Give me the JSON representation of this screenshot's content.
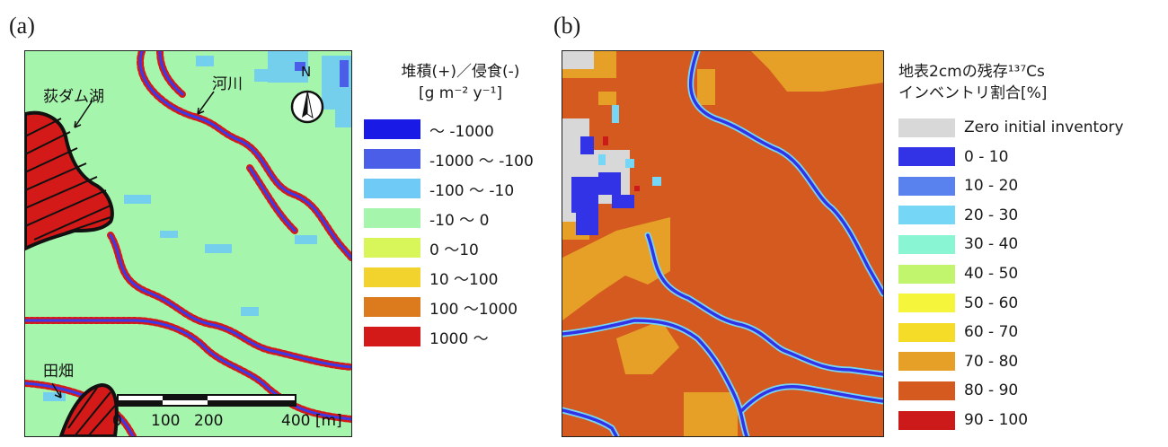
{
  "panel_a": {
    "panel_label": "(a)",
    "map_labels": {
      "lake": "荻ダム湖",
      "river": "河川",
      "field": "田畑",
      "north": "N"
    },
    "scale_bar": {
      "ticks": [
        "0",
        "100",
        "200",
        "400 [m]"
      ]
    },
    "legend": {
      "title_line1": "堆積(+)／侵食(-)",
      "title_line2": "[g m⁻² y⁻¹]",
      "items": [
        {
          "label": "〜 -1000",
          "color": "#1a1ae6"
        },
        {
          "label": "-1000 〜 -100",
          "color": "#4a5ee8"
        },
        {
          "label": "-100 〜 -10",
          "color": "#6fcbf5"
        },
        {
          "label": "-10 〜 0",
          "color": "#a6f5ad"
        },
        {
          "label": "0 〜10",
          "color": "#d8f55a"
        },
        {
          "label": "10 〜100",
          "color": "#f2d22c"
        },
        {
          "label": "100 〜1000",
          "color": "#dc7a1e"
        },
        {
          "label": "1000 〜",
          "color": "#d41919"
        }
      ]
    }
  },
  "panel_b": {
    "panel_label": "(b)",
    "legend": {
      "title_line1": "地表2cmの残存¹³⁷Cs",
      "title_line2": "インベントリ割合[%]",
      "items": [
        {
          "label": "Zero initial inventory",
          "color": "#d8d8d8"
        },
        {
          "label": "0 - 10",
          "color": "#3232e6"
        },
        {
          "label": "10 - 20",
          "color": "#5a82ee"
        },
        {
          "label": "20 - 30",
          "color": "#75d7f5"
        },
        {
          "label": "30 - 40",
          "color": "#8af5d2"
        },
        {
          "label": "40 - 50",
          "color": "#c2f56e"
        },
        {
          "label": "50 - 60",
          "color": "#f5f53c"
        },
        {
          "label": "60 - 70",
          "color": "#f5dc28"
        },
        {
          "label": "70 - 80",
          "color": "#e6a028"
        },
        {
          "label": "80 - 90",
          "color": "#d45a20"
        },
        {
          "label": "90 - 100",
          "color": "#cc1a1a"
        }
      ]
    }
  }
}
